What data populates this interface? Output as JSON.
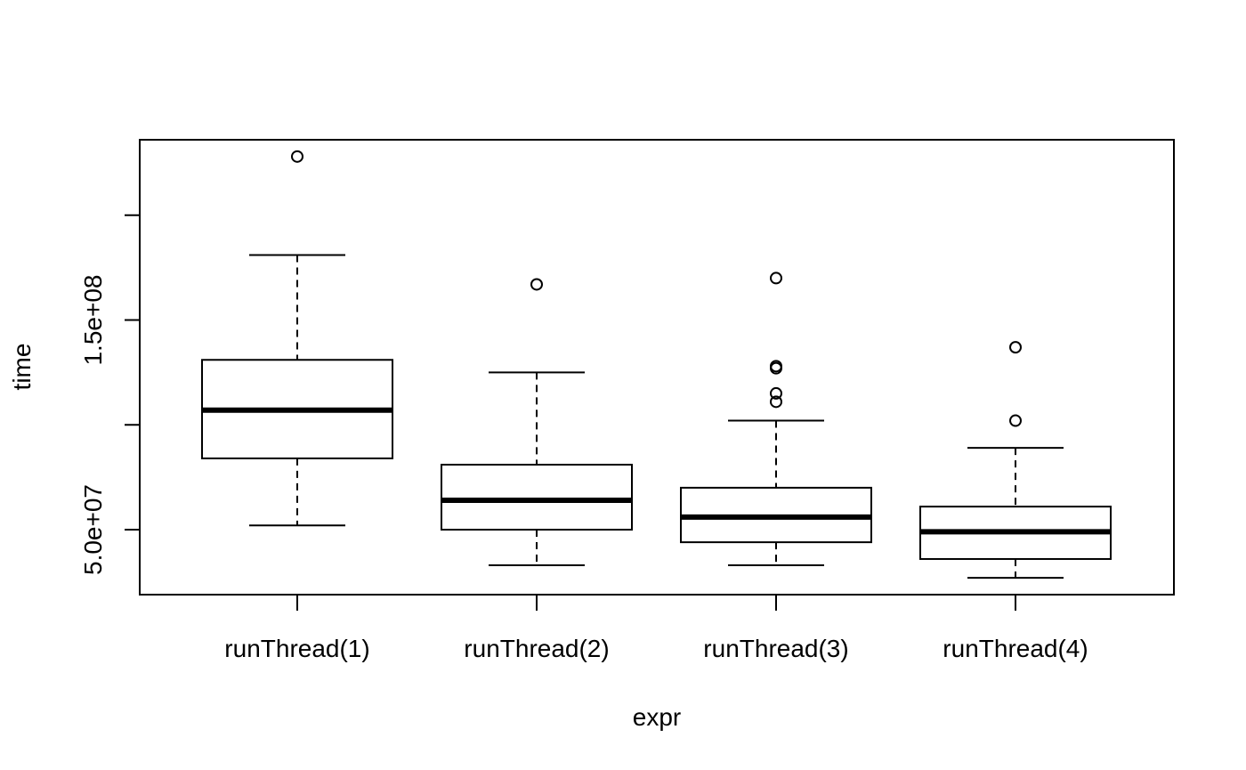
{
  "chart_data": {
    "type": "boxplot",
    "title": "",
    "xlabel": "expr",
    "ylabel": "time",
    "ylim": [
      19000000,
      236000000
    ],
    "y_ticks": [
      50000000,
      100000000,
      150000000,
      200000000
    ],
    "y_tick_labels": [
      "5.0e+07",
      "",
      "1.5e+08",
      ""
    ],
    "grid": false,
    "categories": [
      "runThread(1)",
      "runThread(2)",
      "runThread(3)",
      "runThread(4)"
    ],
    "boxes": [
      {
        "label": "runThread(1)",
        "whisker_low": 52000000,
        "q1": 84000000,
        "median": 107000000,
        "q3": 131000000,
        "whisker_high": 181000000,
        "outliers": [
          228000000
        ]
      },
      {
        "label": "runThread(2)",
        "whisker_low": 33000000,
        "q1": 50000000,
        "median": 64000000,
        "q3": 81000000,
        "whisker_high": 125000000,
        "outliers": [
          167000000
        ]
      },
      {
        "label": "runThread(3)",
        "whisker_low": 33000000,
        "q1": 44000000,
        "median": 56000000,
        "q3": 70000000,
        "whisker_high": 102000000,
        "outliers": [
          170000000,
          128000000,
          127000000,
          115000000,
          111000000
        ]
      },
      {
        "label": "runThread(4)",
        "whisker_low": 27000000,
        "q1": 36000000,
        "median": 49000000,
        "q3": 61000000,
        "whisker_high": 89000000,
        "outliers": [
          137000000,
          102000000
        ]
      }
    ],
    "colors": {
      "stroke": "#000000",
      "box_fill": "#ffffff",
      "background": "#ffffff"
    }
  }
}
